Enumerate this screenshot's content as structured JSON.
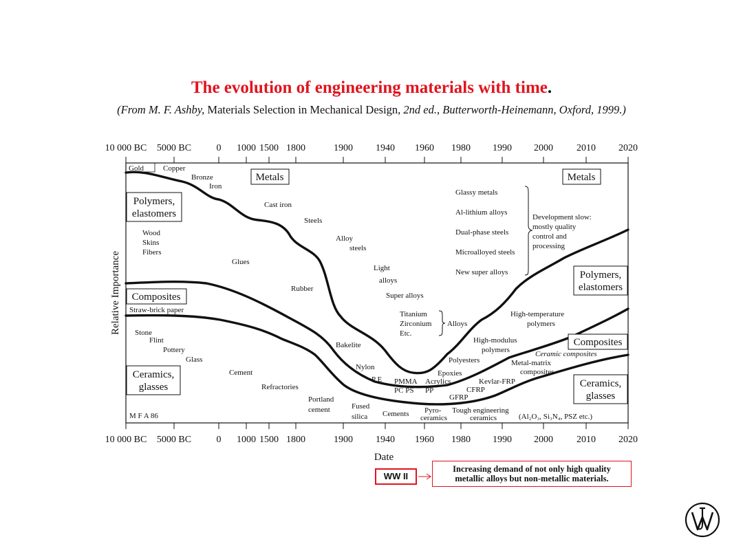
{
  "title": "The evolution of engineering materials with time",
  "title_end": ".",
  "subtitle": {
    "part1": "(From M. F. Ashby, ",
    "part2": "Materials Selection in Mechanical Design",
    "part3": ", 2nd ed., Butterworth-Heinemann, Oxford, 1999.)"
  },
  "axis": {
    "ticks": [
      "10 000 BC",
      "5000 BC",
      "0",
      "1000",
      "1500",
      "1800",
      "1900",
      "1940",
      "1960",
      "1980",
      "1990",
      "2000",
      "2010",
      "2020"
    ],
    "ylabel": "Relative Importance",
    "xlabel": "Date"
  },
  "boxed_labels": {
    "metals_left": "Metals",
    "metals_right": "Metals",
    "polymers_left_1": "Polymers,",
    "polymers_left_2": "elastomers",
    "composites_left": "Composites",
    "ceramics_left_1": "Ceramics,",
    "ceramics_left_2": "glasses",
    "polymers_right_1": "Polymers,",
    "polymers_right_2": "elastomers",
    "composites_right": "Composites",
    "ceramics_right_1": "Ceramics,",
    "ceramics_right_2": "glasses"
  },
  "labels": {
    "gold": "Gold",
    "copper": "Copper",
    "bronze": "Bronze",
    "iron": "Iron",
    "cast_iron": "Cast iron",
    "steels": "Steels",
    "alloy": "Alloy",
    "steels2": "steels",
    "light": "Light",
    "alloys": "alloys",
    "super_alloys": "Super alloys",
    "titanium": "Titanium",
    "zirconium": "Zirconium",
    "etc": "Etc.",
    "alloys_brace": "Alloys",
    "wood": "Wood",
    "skins": "Skins",
    "fibers": "Fibers",
    "glues": "Glues",
    "rubber": "Rubber",
    "straw": "Straw-brick paper",
    "stone": "Stone",
    "flint": "Flint",
    "pottery": "Pottery",
    "glass": "Glass",
    "cement": "Cement",
    "refractories": "Refractories",
    "portland": "Portland",
    "cement2": "cement",
    "fused": "Fused",
    "silica": "silica",
    "cements": "Cements",
    "pyro": "Pyro-",
    "ceramics_word": "ceramics",
    "tough": "Tough engineering",
    "ceramics2": "ceramics",
    "bakelite": "Bakelite",
    "nylon": "Nylon",
    "pe": "P E",
    "pmma": "PMMA",
    "pc_ps": "PC  PS",
    "acrylics": "Acrylics",
    "pp": "PP",
    "epoxies": "Epoxies",
    "polyesters": "Polyesters",
    "gfrp": "GFRP",
    "cfrp": "CFRP",
    "kevlar": "Kevlar-FRP",
    "metal_matrix": "Metal-matrix",
    "composites_word": "composites",
    "ceramic_composites": "Ceramic composites",
    "high_modulus": "High-modulus",
    "polymers_word": "polymers",
    "high_temp": "High-temperature",
    "polymers_word2": "polymers",
    "glassy": "Glassy metals",
    "al_lithium": "Al-lithium alloys",
    "dual_phase": "Dual-phase steels",
    "microalloyed": "Microalloyed steels",
    "new_super": "New super alloys",
    "dev1": "Development slow:",
    "dev2": "mostly quality",
    "dev3": "control and",
    "dev4": "processing",
    "al2o3": "(Al₂O₃, Si₃N₄, PSZ etc.)",
    "mfa": "M F A 86"
  },
  "callouts": {
    "ww2": "WW II",
    "note_line1": "Increasing demand of not only high quality",
    "note_line2": "metallic alloys but non-metallic materials."
  },
  "colors": {
    "accent": "#e0141e",
    "line": "#111111"
  },
  "logo_icon": "wiley-logo-icon"
}
